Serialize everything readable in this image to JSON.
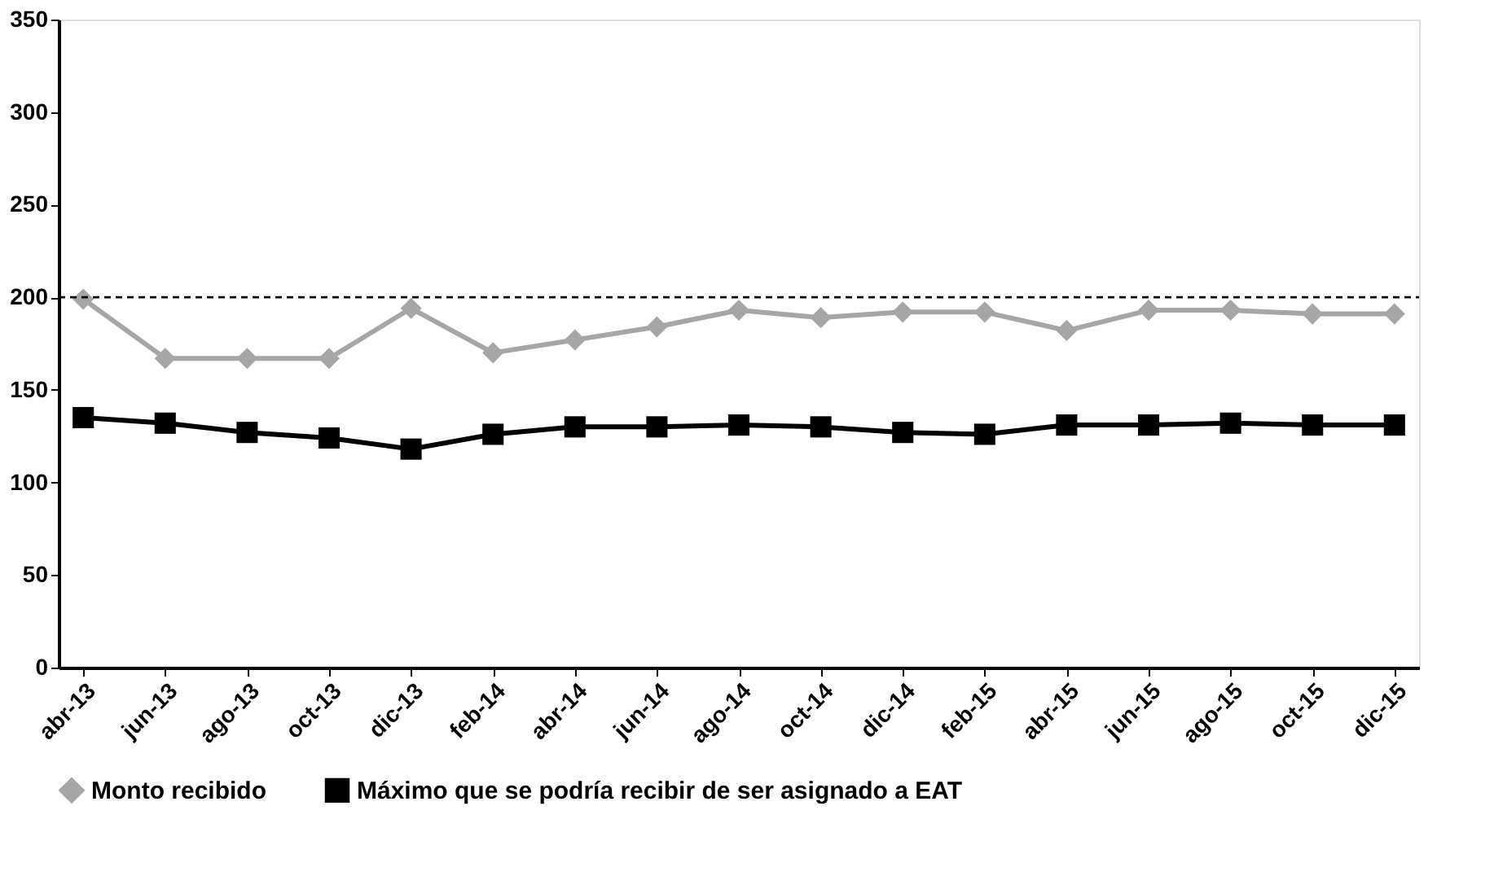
{
  "chart_data": {
    "type": "line",
    "categories": [
      "abr-13",
      "jun-13",
      "ago-13",
      "oct-13",
      "dic-13",
      "feb-14",
      "abr-14",
      "jun-14",
      "ago-14",
      "oct-14",
      "dic-14",
      "feb-15",
      "abr-15",
      "jun-15",
      "ago-15",
      "oct-15",
      "dic-15"
    ],
    "series": [
      {
        "name": "Monto recibido",
        "color": "#a6a6a6",
        "marker": "diamond",
        "values": [
          199,
          167,
          167,
          167,
          194,
          170,
          177,
          184,
          193,
          189,
          192,
          192,
          182,
          193,
          193,
          191,
          191
        ]
      },
      {
        "name": "Máximo que se podría recibir de ser asignado a EAT",
        "color": "#000000",
        "marker": "square",
        "values": [
          135,
          132,
          127,
          124,
          118,
          126,
          130,
          130,
          131,
          130,
          127,
          126,
          131,
          131,
          132,
          131,
          131
        ]
      }
    ],
    "ylim": [
      0,
      350
    ],
    "yticks": [
      0,
      50,
      100,
      150,
      200,
      250,
      300,
      350
    ],
    "ref_lines": [
      {
        "axis": "y",
        "value": 200,
        "color": "#000000",
        "line_style": "dashed"
      }
    ],
    "grid": false,
    "legend": "bottom"
  }
}
